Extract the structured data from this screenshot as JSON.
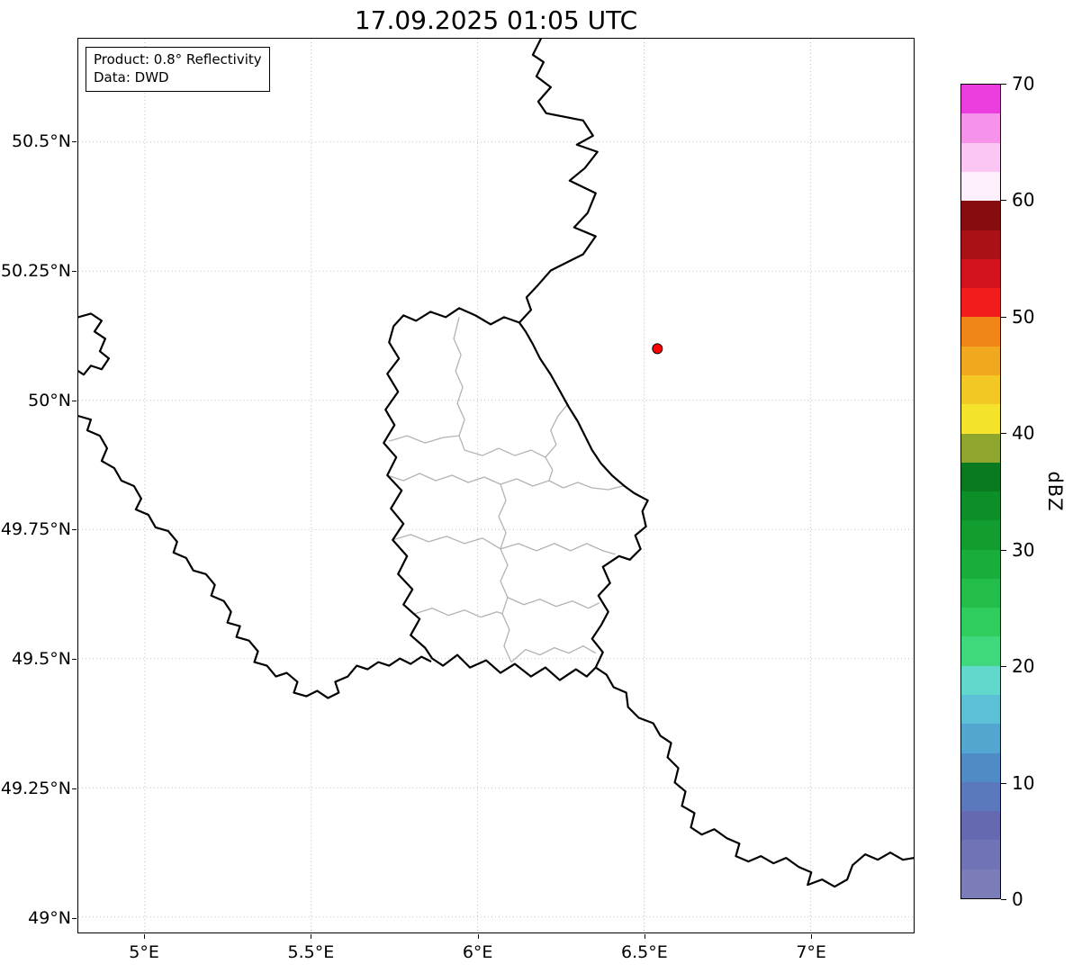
{
  "title": "17.09.2025 01:05 UTC",
  "annotation": {
    "line1": "Product: 0.8° Reflectivity",
    "line2": "Data: DWD"
  },
  "axes": {
    "lon_min": 4.8,
    "lon_max": 7.31,
    "lat_min": 48.97,
    "lat_max": 50.7,
    "x_ticks": [
      {
        "value": 5.0,
        "label": "5°E"
      },
      {
        "value": 5.5,
        "label": "5.5°E"
      },
      {
        "value": 6.0,
        "label": "6°E"
      },
      {
        "value": 6.5,
        "label": "6.5°E"
      },
      {
        "value": 7.0,
        "label": "7°E"
      }
    ],
    "y_ticks": [
      {
        "value": 50.5,
        "label": "50.5°N"
      },
      {
        "value": 50.25,
        "label": "50.25°N"
      },
      {
        "value": 50.0,
        "label": "50°N"
      },
      {
        "value": 49.75,
        "label": "49.75°N"
      },
      {
        "value": 49.5,
        "label": "49.5°N"
      },
      {
        "value": 49.25,
        "label": "49.25°N"
      },
      {
        "value": 49.0,
        "label": "49°N"
      }
    ],
    "grid_color": "#bbbbbb"
  },
  "marker": {
    "lon": 6.54,
    "lat": 50.1,
    "color": "#ff0000",
    "edge_color": "#000000"
  },
  "colorbar": {
    "label": "dBZ",
    "min": 0,
    "max": 70,
    "ticks": [
      70,
      60,
      50,
      40,
      30,
      20,
      10,
      0
    ],
    "colors_bottom_to_top": [
      "#7b7db9",
      "#7073b5",
      "#6569b0",
      "#5a78bb",
      "#4f8cc6",
      "#53a6d0",
      "#5cc0d6",
      "#62d8cd",
      "#3fd87d",
      "#2ecd5d",
      "#22bd4a",
      "#19ad3c",
      "#119d30",
      "#0c8e29",
      "#0a7a20",
      "#8ea62e",
      "#f5e32b",
      "#f3c824",
      "#f1a81e",
      "#ef8617",
      "#f31c1c",
      "#d3141f",
      "#a91117",
      "#870c10",
      "#fdf0fc",
      "#fbc6f3",
      "#f792ea",
      "#ec3ddf"
    ]
  },
  "map_layers": {
    "border_color": "#000000",
    "district_color": "#b3b3b3",
    "national_borders": [
      "515,0 506,18 518,26 510,42 526,54 512,70 521,83 562,91 573,108 555,118 578,126 564,144 547,158 576,172 567,194 552,210 576,220 562,240 526,258 512,274 499,288 504,302 491,316",
      "491,316 474,310 459,318 442,308 424,300 409,310 392,304 376,314 362,308 351,320 346,338 357,356 344,373 356,393 342,413 352,430 340,450 354,466 344,486 360,503 348,523 362,540 350,558 366,576 356,596 372,613 362,630 380,646 370,664 386,678 394,690 406,698 422,686 436,700 454,692 470,706 486,696 504,710 520,700 536,714 554,702 566,710 576,700 584,683 572,668 582,653 590,638 579,620 592,606 584,588 602,576 614,580 626,568 620,553 632,543 628,526 634,514 619,506 608,498 594,486 582,473 572,458 564,442 556,426 546,410 536,392 526,374 514,356 506,340 498,326 491,316",
      "576,700 588,708 596,722 610,728 612,744 624,756 640,762 648,776 660,784 656,800 668,812 664,828 676,838 672,854 686,862 682,878 694,886 708,880 722,890 736,896 732,910 746,916 760,910 774,918 788,912 802,922 816,928 812,942 828,936 842,944 856,936 862,920 876,908 890,914 904,906 918,914 930,912",
      "0,310 14,306 26,314 18,326 30,334 24,348 34,356 26,368 14,364 6,374 0,370",
      "0,420 14,424 10,436 24,442 32,456 26,470 40,478 48,492 62,498 70,512 64,524 78,530 86,544 100,548 110,560 106,572 120,578 128,592 142,596 152,608 148,620 162,626 170,638 166,650 180,654 176,666 190,670 200,682 196,694 210,698 220,710 232,706 244,716 240,728 254,732 266,726 278,734 290,728 286,716 300,710 310,698 322,702 334,694 346,698 358,690 370,696 382,688 392,693"
    ],
    "district_borders": [
      "424,310 418,334 426,352 420,370 428,388 422,406 430,424 424,442 430,458",
      "346,448 366,442 386,450 406,444 424,442",
      "430,458 450,464 468,456 486,464 504,458 520,466",
      "520,466 532,452 526,436 534,420 544,408",
      "520,466 528,480 524,492",
      "344,486 362,492 380,484 398,492 416,486 434,494 452,488 470,496 488,490 506,498 524,492 540,500 556,494 572,500 590,502 606,498",
      "470,496 476,514 468,532 476,550 470,568",
      "350,558 370,552 390,560 410,554 430,562 450,556 470,568 490,562 510,570 530,562 548,570 566,562 584,570 598,574",
      "470,568 478,586 470,604 478,622 472,640 480,658 474,676 482,694",
      "375,640 394,634 412,642 430,636 448,644 466,638 472,640",
      "478,622 496,630 514,624 532,632 550,626 568,634 580,628",
      "482,694 498,680 514,686 530,678 546,684 562,676 576,684"
    ]
  }
}
